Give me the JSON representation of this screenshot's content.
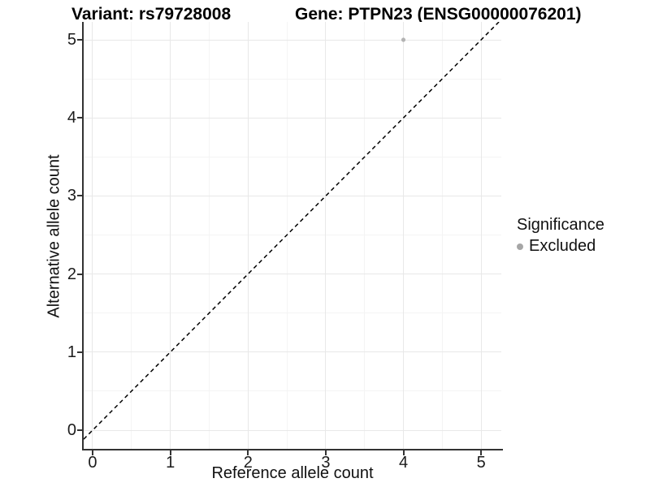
{
  "titles": {
    "variant": "Variant: rs79728008",
    "gene": "Gene: PTPN23 (ENSG00000076201)"
  },
  "chart_data": {
    "type": "scatter",
    "title_left": "Variant: rs79728008",
    "title_right": "Gene: PTPN23 (ENSG00000076201)",
    "xlabel": "Reference allele count",
    "ylabel": "Alternative allele count",
    "xlim": [
      -0.115,
      5.26
    ],
    "ylim": [
      -0.239,
      5.229
    ],
    "x_ticks": [
      0,
      1,
      2,
      3,
      4,
      5
    ],
    "y_ticks": [
      0,
      1,
      2,
      3,
      4,
      5
    ],
    "grid": "major+minor on white background",
    "series": [
      {
        "name": "Excluded",
        "points": [
          {
            "x": 4,
            "y": 5
          }
        ],
        "color": "#b3b3b3",
        "point_radius": 2.6
      }
    ],
    "reference_line": {
      "type": "abline y = x",
      "slope": 1,
      "intercept": 0,
      "style": "dashed",
      "color": "#000000"
    },
    "legend": {
      "title": "Significance",
      "position": "right",
      "items": [
        {
          "label": "Excluded",
          "color": "#a6a6a6"
        }
      ]
    },
    "colors": {
      "background": "#ffffff",
      "grid_major": "#e8e8e8",
      "grid_minor": "#f4f4f4",
      "axis_line": "#333333",
      "text": "#111111"
    }
  }
}
